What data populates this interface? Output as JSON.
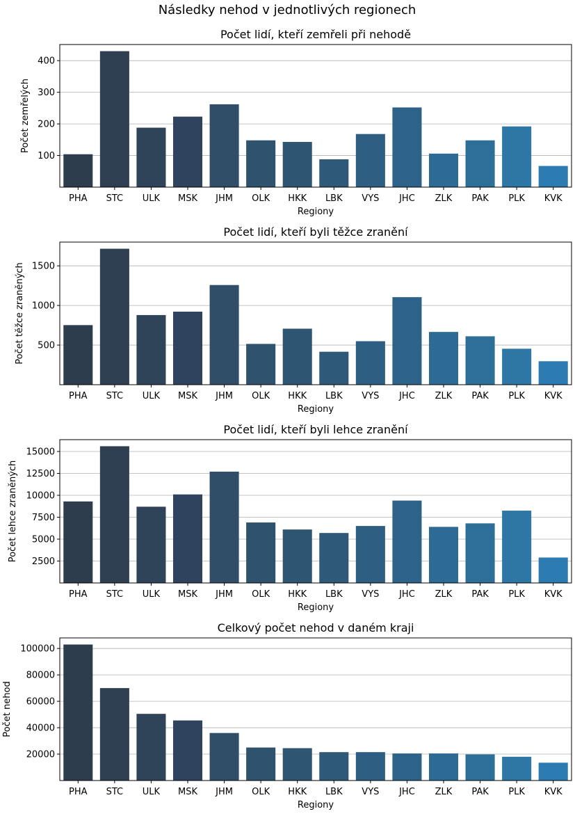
{
  "figure_title": "Následky nehod v jednotlivých regionech",
  "chart_data": [
    {
      "type": "bar",
      "title": "Počet lidí, kteří zemřeli při nehodě",
      "xlabel": "Regiony",
      "ylabel": "Počet zemřelých",
      "categories": [
        "PHA",
        "STC",
        "ULK",
        "MSK",
        "JHM",
        "OLK",
        "HKK",
        "LBK",
        "VYS",
        "JHC",
        "ZLK",
        "PAK",
        "PLK",
        "KVK"
      ],
      "values": [
        104,
        430,
        188,
        223,
        262,
        148,
        143,
        88,
        168,
        252,
        106,
        148,
        192,
        67
      ],
      "ylim": [
        0,
        451
      ],
      "yticks": [
        100,
        200,
        300,
        400
      ],
      "ytick_labels": [
        "100",
        "200",
        "300",
        "400"
      ],
      "grid": "y"
    },
    {
      "type": "bar",
      "title": "Počet lidí, kteří byli těžce zranění",
      "xlabel": "Regiony",
      "ylabel": "Počet těžce zraněných",
      "categories": [
        "PHA",
        "STC",
        "ULK",
        "MSK",
        "JHM",
        "OLK",
        "HKK",
        "LBK",
        "VYS",
        "JHC",
        "ZLK",
        "PAK",
        "PLK",
        "KVK"
      ],
      "values": [
        752,
        1716,
        879,
        922,
        1258,
        515,
        707,
        416,
        549,
        1105,
        666,
        611,
        454,
        296
      ],
      "ylim": [
        0,
        1800
      ],
      "yticks": [
        500,
        1000,
        1500
      ],
      "ytick_labels": [
        "500",
        "1000",
        "1500"
      ],
      "grid": "y"
    },
    {
      "type": "bar",
      "title": "Počet lidí, kteří byli lehce zranění",
      "xlabel": "Regiony",
      "ylabel": "Počet lehce zraněných",
      "categories": [
        "PHA",
        "STC",
        "ULK",
        "MSK",
        "JHM",
        "OLK",
        "HKK",
        "LBK",
        "VYS",
        "JHC",
        "ZLK",
        "PAK",
        "PLK",
        "KVK"
      ],
      "values": [
        9300,
        15600,
        8700,
        10100,
        12700,
        6900,
        6100,
        5700,
        6500,
        9400,
        6400,
        6800,
        8250,
        2900
      ],
      "ylim": [
        0,
        16350
      ],
      "yticks": [
        2500,
        5000,
        7500,
        10000,
        12500,
        15000
      ],
      "ytick_labels": [
        "2500",
        "5000",
        "7500",
        "10000",
        "12500",
        "15000"
      ],
      "grid": "y"
    },
    {
      "type": "bar",
      "title": "Celkový počet nehod v daném kraji",
      "xlabel": "Regiony",
      "ylabel": "Počet nehod",
      "categories": [
        "PHA",
        "STC",
        "ULK",
        "MSK",
        "JHM",
        "OLK",
        "HKK",
        "LBK",
        "VYS",
        "JHC",
        "ZLK",
        "PAK",
        "PLK",
        "KVK"
      ],
      "values": [
        103000,
        70000,
        50500,
        45500,
        36000,
        25000,
        24500,
        21500,
        21500,
        20500,
        20500,
        19800,
        18000,
        13500
      ],
      "ylim": [
        0,
        108000
      ],
      "yticks": [
        20000,
        40000,
        60000,
        80000,
        100000
      ],
      "ytick_labels": [
        "20000",
        "40000",
        "60000",
        "80000",
        "100000"
      ],
      "grid": "y"
    }
  ],
  "colors": {
    "bar_gradient": [
      "#2e3d4d",
      "#2f3f52",
      "#2f4459",
      "#30435e",
      "#304e68",
      "#2f526d",
      "#2e5672",
      "#2f5978",
      "#2e5f82",
      "#2e6389",
      "#2d6a94",
      "#2e6f98",
      "#2e76a4",
      "#2c7bb0"
    ],
    "grid": "#b0b0b0",
    "axis": "#000000"
  }
}
